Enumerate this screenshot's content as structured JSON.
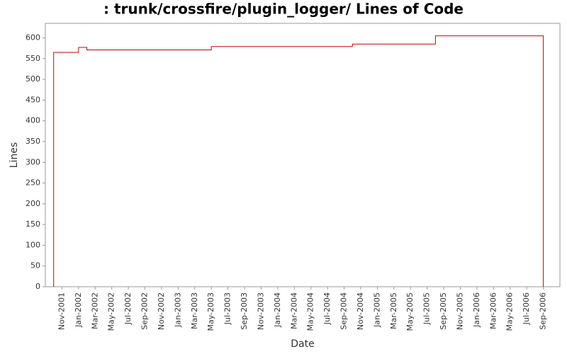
{
  "chart_data": {
    "type": "line",
    "title": ": trunk/crossfire/plugin_logger/ Lines of Code",
    "x_label": "Date",
    "y_label": "Lines",
    "x": [
      "2001-10",
      "2001-10",
      "2001-10",
      "2002-01",
      "2002-02",
      "2003-05",
      "2004-10",
      "2005-08",
      "2006-09"
    ],
    "series": [
      {
        "name": "Lines",
        "color": "#cc0000",
        "values": [
          0,
          295,
          565,
          577,
          571,
          579,
          585,
          605,
          0
        ]
      }
    ],
    "xlim": [
      "2001-09",
      "2006-11"
    ],
    "xticks": [
      {
        "value": "2001-11",
        "label": "Nov-2001"
      },
      {
        "value": "2002-01",
        "label": "Jan-2002"
      },
      {
        "value": "2002-03",
        "label": "Mar-2002"
      },
      {
        "value": "2002-05",
        "label": "May-2002"
      },
      {
        "value": "2002-07",
        "label": "Jul-2002"
      },
      {
        "value": "2002-09",
        "label": "Sep-2002"
      },
      {
        "value": "2002-11",
        "label": "Nov-2002"
      },
      {
        "value": "2003-01",
        "label": "Jan-2003"
      },
      {
        "value": "2003-03",
        "label": "Mar-2003"
      },
      {
        "value": "2003-05",
        "label": "May-2003"
      },
      {
        "value": "2003-07",
        "label": "Jul-2003"
      },
      {
        "value": "2003-09",
        "label": "Sep-2003"
      },
      {
        "value": "2003-11",
        "label": "Nov-2003"
      },
      {
        "value": "2004-01",
        "label": "Jan-2004"
      },
      {
        "value": "2004-03",
        "label": "Mar-2004"
      },
      {
        "value": "2004-05",
        "label": "May-2004"
      },
      {
        "value": "2004-07",
        "label": "Jul-2004"
      },
      {
        "value": "2004-09",
        "label": "Sep-2004"
      },
      {
        "value": "2004-11",
        "label": "Nov-2004"
      },
      {
        "value": "2005-01",
        "label": "Jan-2005"
      },
      {
        "value": "2005-03",
        "label": "Mar-2005"
      },
      {
        "value": "2005-05",
        "label": "May-2005"
      },
      {
        "value": "2005-07",
        "label": "Jul-2005"
      },
      {
        "value": "2005-09",
        "label": "Sep-2005"
      },
      {
        "value": "2005-11",
        "label": "Nov-2005"
      },
      {
        "value": "2006-01",
        "label": "Jan-2006"
      },
      {
        "value": "2006-03",
        "label": "Mar-2006"
      },
      {
        "value": "2006-05",
        "label": "May-2006"
      },
      {
        "value": "2006-07",
        "label": "Jul-2006"
      },
      {
        "value": "2006-09",
        "label": "Sep-2006"
      }
    ],
    "ylim": [
      0,
      635
    ],
    "yticks": [
      0,
      50,
      100,
      150,
      200,
      250,
      300,
      350,
      400,
      450,
      500,
      550,
      600
    ],
    "step": true,
    "grid": false
  }
}
